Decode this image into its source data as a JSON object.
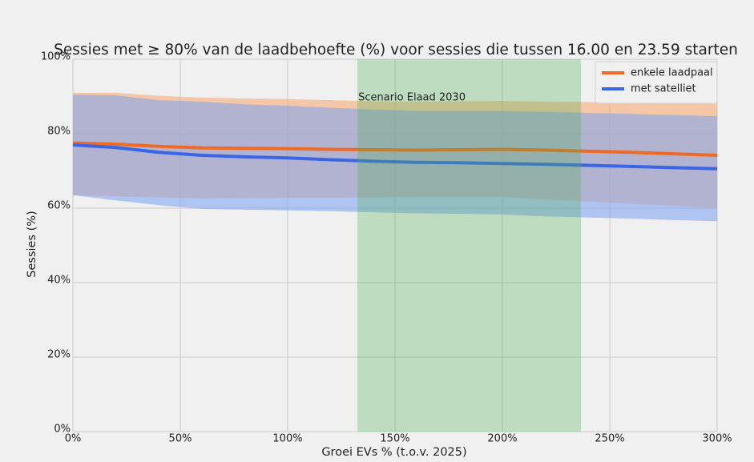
{
  "chart_data": {
    "type": "line",
    "title": "Sessies met ≥ 80% van de laadbehoefte (%) voor sessies die tussen 16.00 en 23.59 starten",
    "x_label": "Groei EVs % (t.o.v. 2025)",
    "y_label": "Sessies (%)",
    "x": [
      0,
      20,
      40,
      60,
      80,
      100,
      120,
      140,
      160,
      180,
      200,
      220,
      240,
      260,
      280,
      300
    ],
    "series": [
      {
        "name": "enkele laadpaal",
        "color": "#ee6a25",
        "band_color": "#f5a56c",
        "values": [
          77.5,
          77.2,
          76.6,
          76.2,
          76.1,
          76.0,
          75.8,
          75.7,
          75.6,
          75.7,
          75.8,
          75.6,
          75.3,
          75.0,
          74.6,
          74.2
        ],
        "upper": [
          91.0,
          91.0,
          90.2,
          89.7,
          89.5,
          89.3,
          89.0,
          88.7,
          88.6,
          88.7,
          88.8,
          88.6,
          88.5,
          88.4,
          88.2,
          88.0
        ],
        "lower": [
          63.5,
          63.2,
          62.9,
          62.6,
          62.7,
          62.8,
          62.8,
          62.9,
          63.0,
          63.0,
          63.0,
          62.4,
          61.8,
          61.2,
          60.6,
          60.0
        ]
      },
      {
        "name": "met satelliet",
        "color": "#3a66e6",
        "band_color": "#7ca0f4",
        "values": [
          77.0,
          76.3,
          75.0,
          74.2,
          73.8,
          73.5,
          73.0,
          72.6,
          72.3,
          72.2,
          72.0,
          71.8,
          71.5,
          71.2,
          70.9,
          70.6
        ],
        "upper": [
          90.5,
          90.3,
          89.0,
          88.6,
          87.9,
          87.5,
          87.0,
          86.5,
          86.1,
          86.1,
          86.1,
          85.9,
          85.6,
          85.3,
          85.0,
          84.7
        ],
        "lower": [
          63.5,
          62.1,
          60.8,
          59.8,
          59.6,
          59.4,
          59.2,
          58.9,
          58.6,
          58.5,
          58.3,
          57.8,
          57.5,
          57.2,
          56.8,
          56.5
        ]
      }
    ],
    "shaded_region": {
      "x": [
        132.5,
        236.6
      ],
      "color": "#4caf50",
      "label": "Scenario Elaad 2030"
    },
    "xlim": [
      0,
      300
    ],
    "ylim": [
      0,
      100
    ],
    "xticks": [
      {
        "value": 0,
        "label": "0%"
      },
      {
        "value": 50,
        "label": "50%"
      },
      {
        "value": 100,
        "label": "100%"
      },
      {
        "value": 150,
        "label": "150%"
      },
      {
        "value": 200,
        "label": "200%"
      },
      {
        "value": 250,
        "label": "250%"
      },
      {
        "value": 300,
        "label": "300%"
      }
    ],
    "yticks": [
      {
        "value": 0,
        "label": "0%"
      },
      {
        "value": 20,
        "label": "20%"
      },
      {
        "value": 40,
        "label": "40%"
      },
      {
        "value": 60,
        "label": "60%"
      },
      {
        "value": 80,
        "label": "80%"
      },
      {
        "value": 100,
        "label": "100%"
      }
    ],
    "grid": true,
    "legend": "upper right"
  }
}
